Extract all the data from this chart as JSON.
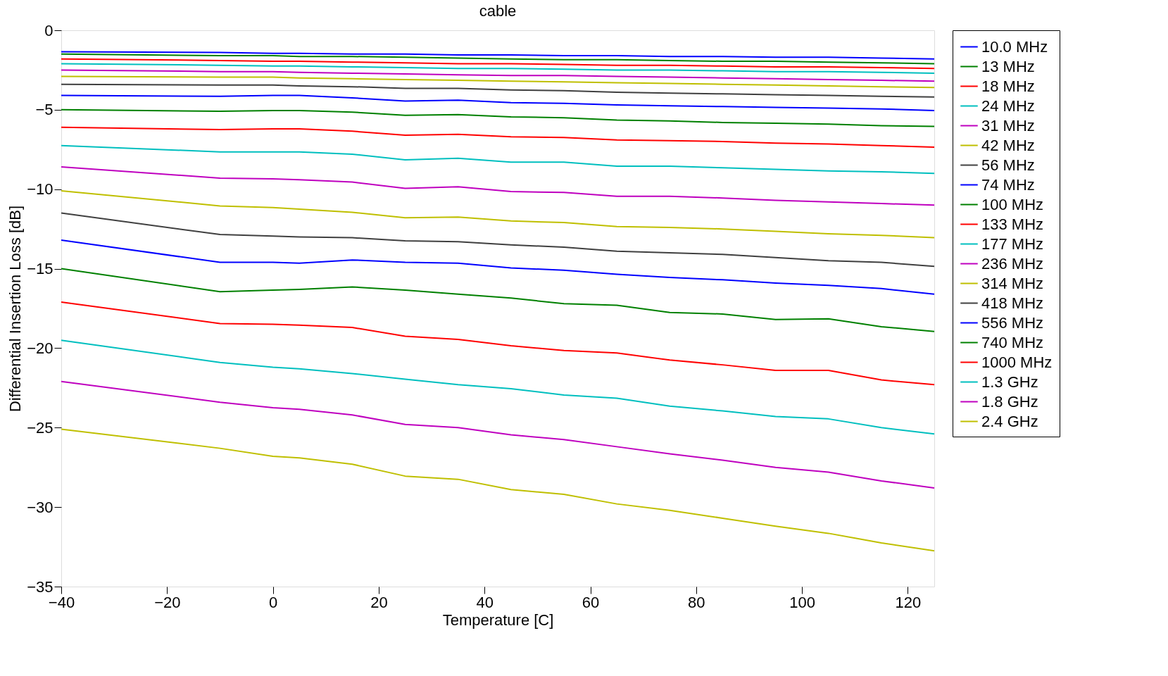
{
  "chart_data": {
    "type": "line",
    "title": "cable",
    "xlabel": "Temperature [C]",
    "ylabel": "Differential Insertion Loss [dB]",
    "x": [
      -40,
      -10,
      0,
      5,
      15,
      25,
      35,
      45,
      55,
      65,
      75,
      85,
      95,
      105,
      115,
      125
    ],
    "xlim": [
      -40,
      125
    ],
    "xticks": [
      -40,
      -20,
      0,
      20,
      40,
      60,
      80,
      100,
      120
    ],
    "ylim": [
      -35,
      0
    ],
    "yticks": [
      -35,
      -30,
      -25,
      -20,
      -15,
      -10,
      -5,
      0
    ],
    "grid": false,
    "legend": "right",
    "marker": "none",
    "line_style": "solid",
    "series": [
      {
        "name": "10.0 MHz",
        "color": "#0000ff",
        "values": [
          -1.35,
          -1.4,
          -1.45,
          -1.45,
          -1.5,
          -1.5,
          -1.55,
          -1.55,
          -1.6,
          -1.6,
          -1.65,
          -1.65,
          -1.7,
          -1.7,
          -1.75,
          -1.8
        ]
      },
      {
        "name": "13 MHz",
        "color": "#008000",
        "values": [
          -1.5,
          -1.6,
          -1.6,
          -1.65,
          -1.65,
          -1.7,
          -1.75,
          -1.8,
          -1.85,
          -1.85,
          -1.9,
          -1.95,
          -1.95,
          -2.0,
          -2.05,
          -2.1
        ]
      },
      {
        "name": "18 MHz",
        "color": "#ff0000",
        "values": [
          -1.8,
          -1.9,
          -1.95,
          -1.95,
          -2.0,
          -2.05,
          -2.1,
          -2.1,
          -2.15,
          -2.2,
          -2.2,
          -2.25,
          -2.3,
          -2.3,
          -2.35,
          -2.4
        ]
      },
      {
        "name": "24 MHz",
        "color": "#00bfbf",
        "values": [
          -2.1,
          -2.2,
          -2.25,
          -2.25,
          -2.3,
          -2.35,
          -2.4,
          -2.4,
          -2.45,
          -2.5,
          -2.5,
          -2.55,
          -2.6,
          -2.6,
          -2.65,
          -2.7
        ]
      },
      {
        "name": "31 MHz",
        "color": "#bf00bf",
        "values": [
          -2.5,
          -2.6,
          -2.6,
          -2.65,
          -2.7,
          -2.75,
          -2.8,
          -2.85,
          -2.85,
          -2.9,
          -2.95,
          -3.0,
          -3.05,
          -3.1,
          -3.15,
          -3.2
        ]
      },
      {
        "name": "42 MHz",
        "color": "#bfbf00",
        "values": [
          -2.9,
          -2.95,
          -2.95,
          -3.0,
          -3.05,
          -3.1,
          -3.15,
          -3.2,
          -3.25,
          -3.3,
          -3.35,
          -3.4,
          -3.45,
          -3.5,
          -3.55,
          -3.6
        ]
      },
      {
        "name": "56 MHz",
        "color": "#404040",
        "values": [
          -3.4,
          -3.45,
          -3.45,
          -3.5,
          -3.55,
          -3.65,
          -3.65,
          -3.75,
          -3.8,
          -3.9,
          -3.95,
          -4.0,
          -4.05,
          -4.1,
          -4.15,
          -4.2
        ]
      },
      {
        "name": "74 MHz",
        "color": "#0000ff",
        "values": [
          -4.1,
          -4.15,
          -4.1,
          -4.1,
          -4.25,
          -4.45,
          -4.4,
          -4.55,
          -4.6,
          -4.7,
          -4.75,
          -4.8,
          -4.85,
          -4.9,
          -4.95,
          -5.05
        ]
      },
      {
        "name": "100 MHz",
        "color": "#008000",
        "values": [
          -5.0,
          -5.1,
          -5.05,
          -5.05,
          -5.15,
          -5.35,
          -5.3,
          -5.45,
          -5.5,
          -5.65,
          -5.7,
          -5.8,
          -5.85,
          -5.9,
          -6.0,
          -6.05
        ]
      },
      {
        "name": "133 MHz",
        "color": "#ff0000",
        "values": [
          -6.1,
          -6.25,
          -6.2,
          -6.2,
          -6.35,
          -6.6,
          -6.55,
          -6.7,
          -6.75,
          -6.9,
          -6.95,
          -7.0,
          -7.1,
          -7.15,
          -7.25,
          -7.35
        ]
      },
      {
        "name": "177 MHz",
        "color": "#00bfbf",
        "values": [
          -7.25,
          -7.65,
          -7.65,
          -7.65,
          -7.8,
          -8.15,
          -8.05,
          -8.3,
          -8.3,
          -8.55,
          -8.55,
          -8.65,
          -8.75,
          -8.85,
          -8.9,
          -9.0
        ]
      },
      {
        "name": "236 MHz",
        "color": "#bf00bf",
        "values": [
          -8.6,
          -9.3,
          -9.35,
          -9.4,
          -9.55,
          -9.95,
          -9.85,
          -10.15,
          -10.2,
          -10.45,
          -10.45,
          -10.55,
          -10.7,
          -10.8,
          -10.9,
          -11.0
        ]
      },
      {
        "name": "314 MHz",
        "color": "#bfbf00",
        "values": [
          -10.1,
          -11.05,
          -11.15,
          -11.25,
          -11.45,
          -11.8,
          -11.75,
          -12.0,
          -12.1,
          -12.35,
          -12.4,
          -12.5,
          -12.65,
          -12.8,
          -12.9,
          -13.05
        ]
      },
      {
        "name": "418 MHz",
        "color": "#404040",
        "values": [
          -11.5,
          -12.85,
          -12.95,
          -13.0,
          -13.05,
          -13.25,
          -13.3,
          -13.5,
          -13.65,
          -13.9,
          -14.0,
          -14.1,
          -14.3,
          -14.5,
          -14.6,
          -14.85
        ]
      },
      {
        "name": "556 MHz",
        "color": "#0000ff",
        "values": [
          -13.2,
          -14.6,
          -14.6,
          -14.65,
          -14.45,
          -14.6,
          -14.65,
          -14.95,
          -15.1,
          -15.35,
          -15.55,
          -15.7,
          -15.9,
          -16.05,
          -16.25,
          -16.6
        ]
      },
      {
        "name": "740 MHz",
        "color": "#008000",
        "values": [
          -15.0,
          -16.45,
          -16.35,
          -16.3,
          -16.15,
          -16.35,
          -16.6,
          -16.85,
          -17.2,
          -17.3,
          -17.75,
          -17.85,
          -18.2,
          -18.15,
          -18.65,
          -18.95
        ]
      },
      {
        "name": "1000 MHz",
        "color": "#ff0000",
        "values": [
          -17.1,
          -18.45,
          -18.5,
          -18.55,
          -18.7,
          -19.25,
          -19.45,
          -19.85,
          -20.15,
          -20.3,
          -20.75,
          -21.05,
          -21.4,
          -21.4,
          -22.0,
          -22.3
        ]
      },
      {
        "name": "1.3 GHz",
        "color": "#00bfbf",
        "values": [
          -19.5,
          -20.9,
          -21.2,
          -21.3,
          -21.6,
          -21.95,
          -22.3,
          -22.55,
          -22.95,
          -23.15,
          -23.65,
          -23.95,
          -24.3,
          -24.45,
          -25.0,
          -25.4
        ]
      },
      {
        "name": "1.8 GHz",
        "color": "#bf00bf",
        "values": [
          -22.1,
          -23.4,
          -23.75,
          -23.85,
          -24.2,
          -24.8,
          -25.0,
          -25.45,
          -25.75,
          -26.2,
          -26.65,
          -27.05,
          -27.5,
          -27.8,
          -28.35,
          -28.8
        ]
      },
      {
        "name": "2.4 GHz",
        "color": "#bfbf00",
        "values": [
          -25.1,
          -26.3,
          -26.8,
          -26.9,
          -27.3,
          -28.05,
          -28.25,
          -28.9,
          -29.2,
          -29.8,
          -30.2,
          -30.7,
          -31.2,
          -31.65,
          -32.25,
          -32.75
        ]
      }
    ]
  }
}
